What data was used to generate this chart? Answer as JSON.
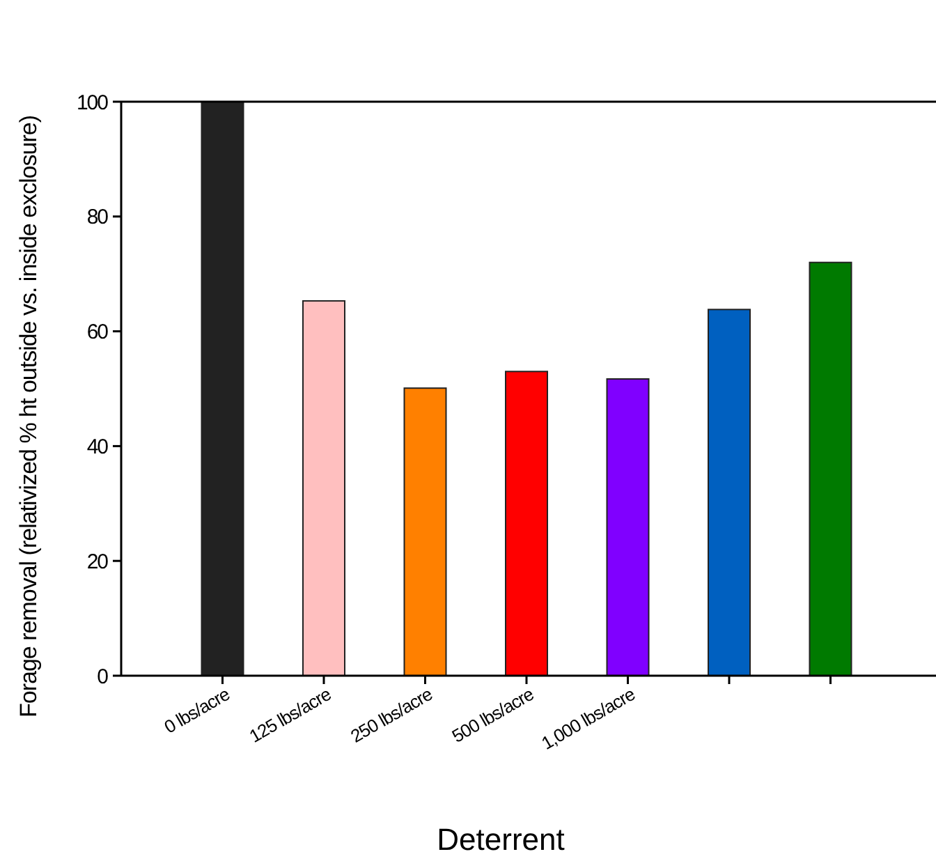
{
  "chart_data": {
    "type": "bar",
    "xlabel": "Deterrent",
    "ylabel": "Forage removal (relativized % ht outside vs. inside exclosure)",
    "categories": [
      "0 lbs/acre",
      "125 lbs/acre",
      "250 lbs/acre",
      "500 lbs/acre",
      "1,000 lbs/acre",
      null,
      null
    ],
    "values": [
      100,
      65.3,
      50.1,
      53.0,
      51.7,
      63.8,
      72.0
    ],
    "colors": [
      "#222222",
      "#ffbfbf",
      "#ff8000",
      "#ff0000",
      "#8000ff",
      "#0060c0",
      "#007a00"
    ],
    "ylim": [
      0,
      100
    ],
    "yticks": [
      0,
      20,
      40,
      60,
      80,
      100
    ],
    "grid": false
  }
}
